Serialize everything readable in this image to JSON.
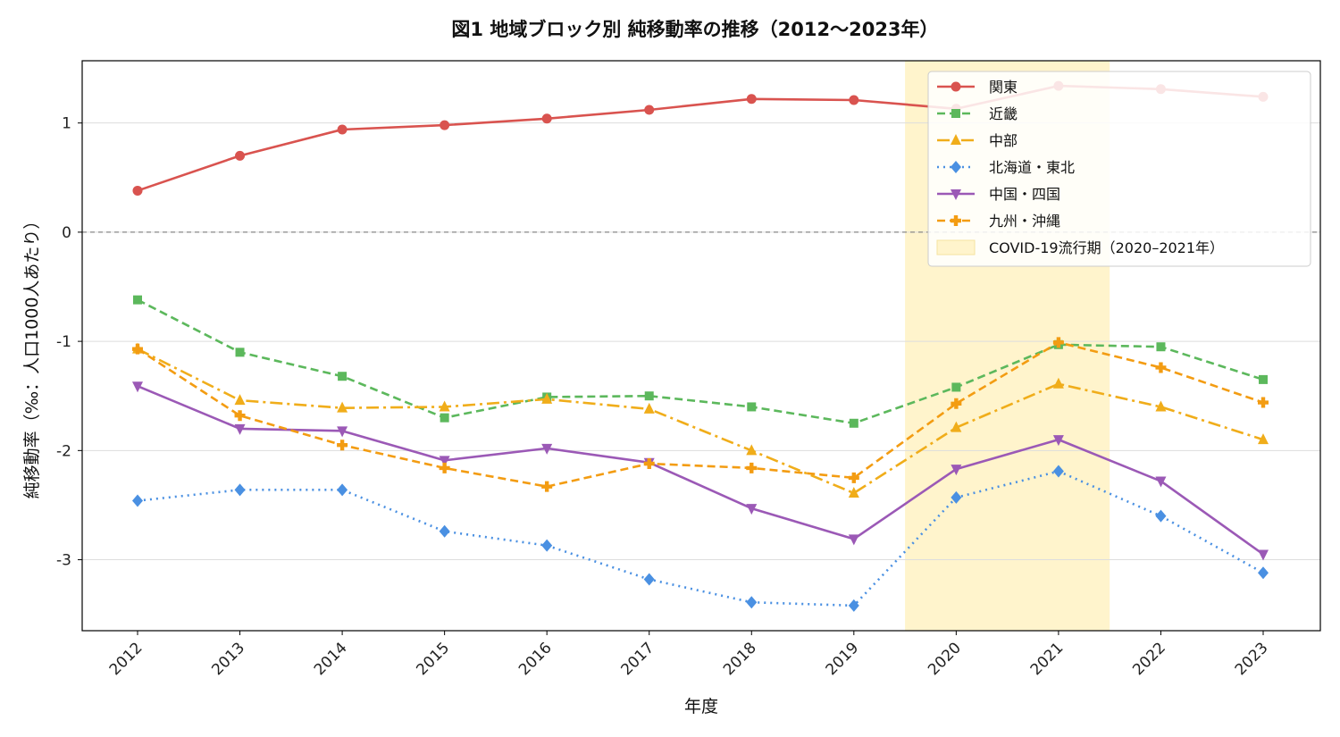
{
  "chart_data": {
    "type": "line",
    "title": "図1 地域ブロック別 純移動率の推移（2012〜2023年）",
    "xlabel": "年度",
    "ylabel": "純移動率（‰：人口1000人あたり）",
    "x": [
      "2012",
      "2013",
      "2014",
      "2015",
      "2016",
      "2017",
      "2018",
      "2019",
      "2020",
      "2021",
      "2022",
      "2023"
    ],
    "ylim": [
      -3.65,
      1.57
    ],
    "yticks": [
      1,
      0,
      -1,
      -2,
      -3
    ],
    "ytick_labels": [
      "1",
      "0",
      "-1",
      "-2",
      "-3"
    ],
    "grid": "horizontal",
    "zero_line": true,
    "legend_position": "top-right",
    "shaded_region": {
      "label": "COVID-19流行期（2020–2021年）",
      "from": 2019.5,
      "to": 2021.5,
      "color": "#fff4cc"
    },
    "series": [
      {
        "name": "関東",
        "color": "#d9534f",
        "dash": "",
        "marker": "circle",
        "values": [
          0.38,
          0.7,
          0.94,
          0.98,
          1.04,
          1.12,
          1.22,
          1.21,
          1.13,
          1.34,
          1.31,
          1.24
        ]
      },
      {
        "name": "近畿",
        "color": "#5cb85c",
        "dash": "9,5",
        "marker": "square",
        "values": [
          -0.62,
          -1.1,
          -1.32,
          -1.7,
          -1.51,
          -1.5,
          -1.6,
          -1.75,
          -1.42,
          -1.03,
          -1.05,
          -1.35
        ]
      },
      {
        "name": "中部",
        "color": "#f0ad1a",
        "dash": "14,5,3,5",
        "marker": "triangle-up",
        "values": [
          -1.07,
          -1.54,
          -1.61,
          -1.6,
          -1.53,
          -1.62,
          -2.0,
          -2.39,
          -1.79,
          -1.39,
          -1.6,
          -1.9
        ]
      },
      {
        "name": "北海道・東北",
        "color": "#4a90e2",
        "dash": "2,5",
        "marker": "diamond",
        "values": [
          -2.46,
          -2.36,
          -2.36,
          -2.74,
          -2.87,
          -3.18,
          -3.39,
          -3.42,
          -2.43,
          -2.19,
          -2.6,
          -3.12
        ]
      },
      {
        "name": "中国・四国",
        "color": "#9b59b6",
        "dash": "",
        "marker": "triangle-down",
        "values": [
          -1.41,
          -1.8,
          -1.82,
          -2.09,
          -1.98,
          -2.11,
          -2.53,
          -2.81,
          -2.17,
          -1.9,
          -2.28,
          -2.95
        ]
      },
      {
        "name": "九州・沖縄",
        "color": "#f39c12",
        "dash": "9,5",
        "marker": "plus",
        "values": [
          -1.07,
          -1.68,
          -1.95,
          -2.16,
          -2.33,
          -2.12,
          -2.16,
          -2.25,
          -1.57,
          -1.01,
          -1.24,
          -1.56
        ]
      }
    ]
  }
}
